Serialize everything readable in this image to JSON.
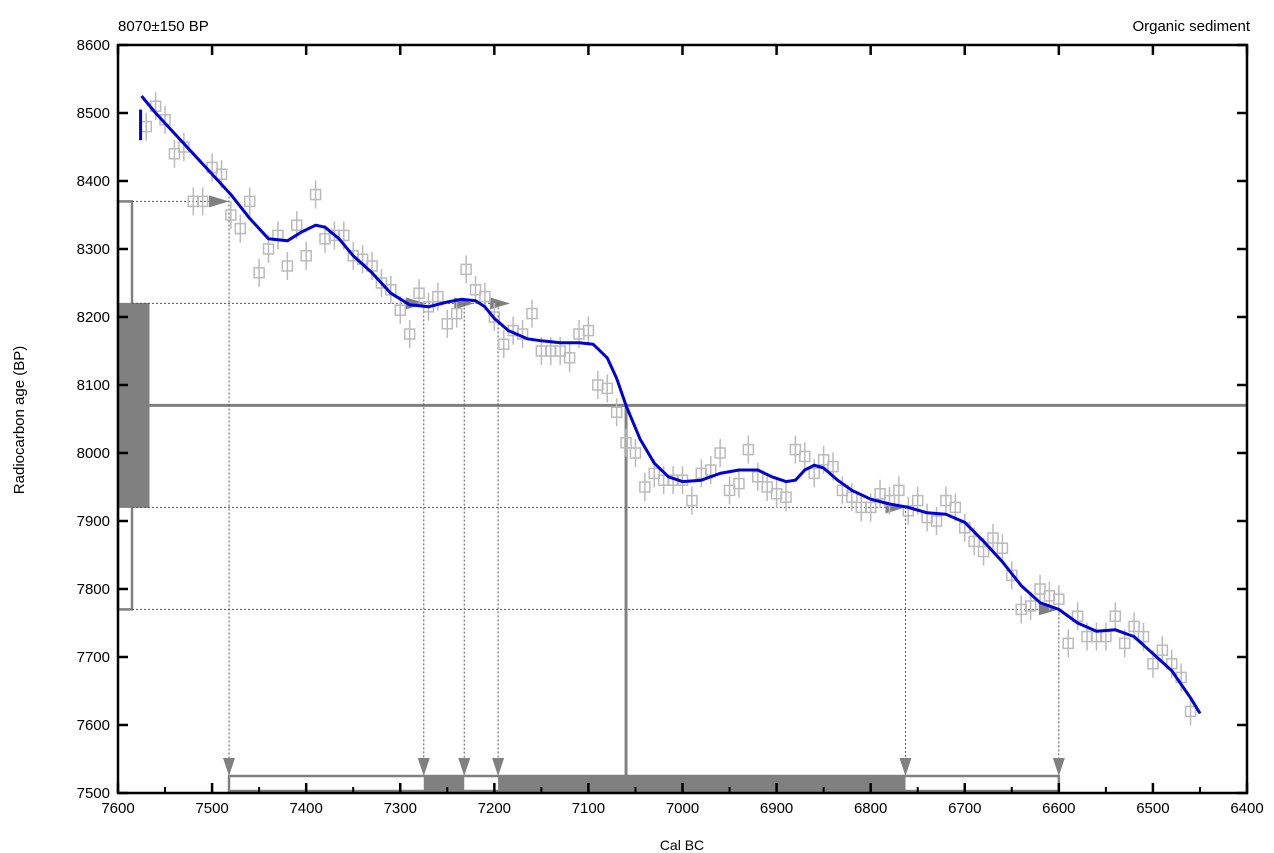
{
  "header": {
    "left_label": "8070±150 BP",
    "right_label": "Organic sediment"
  },
  "chart_data": {
    "type": "line",
    "title": "",
    "xlabel": "Cal BC",
    "ylabel": "Radiocarbon age (BP)",
    "xlim": [
      7600,
      6400
    ],
    "ylim": [
      7500,
      8600
    ],
    "x_ticks": [
      "7600",
      "7500",
      "7400",
      "7300",
      "7200",
      "7100",
      "7000",
      "6900",
      "6800",
      "6700",
      "6600",
      "6500",
      "6400"
    ],
    "y_ticks": [
      "7500",
      "7600",
      "7700",
      "7800",
      "7900",
      "8000",
      "8100",
      "8200",
      "8300",
      "8400",
      "8500",
      "8600"
    ],
    "grid": false,
    "sample": {
      "age_bp": 8070,
      "sigma": 150,
      "one_sigma_range": [
        7920,
        8220
      ],
      "two_sigma_range": [
        7770,
        8370
      ],
      "median_cal_bc": 7060
    },
    "calibration_curve": {
      "color": "#0000dd",
      "x": [
        7575,
        7560,
        7540,
        7520,
        7500,
        7480,
        7460,
        7440,
        7420,
        7405,
        7390,
        7380,
        7365,
        7350,
        7330,
        7310,
        7290,
        7270,
        7250,
        7235,
        7220,
        7210,
        7200,
        7185,
        7165,
        7150,
        7130,
        7110,
        7095,
        7080,
        7070,
        7060,
        7045,
        7030,
        7015,
        7000,
        6980,
        6960,
        6940,
        6920,
        6905,
        6890,
        6880,
        6870,
        6860,
        6850,
        6835,
        6820,
        6800,
        6780,
        6760,
        6740,
        6720,
        6700,
        6680,
        6660,
        6640,
        6620,
        6600,
        6580,
        6560,
        6540,
        6520,
        6500,
        6480,
        6460,
        6450
      ],
      "y": [
        8525,
        8500,
        8470,
        8440,
        8410,
        8380,
        8345,
        8315,
        8312,
        8325,
        8335,
        8332,
        8315,
        8290,
        8265,
        8235,
        8218,
        8215,
        8222,
        8226,
        8224,
        8215,
        8198,
        8180,
        8168,
        8165,
        8162,
        8162,
        8160,
        8140,
        8110,
        8070,
        8020,
        7985,
        7965,
        7958,
        7960,
        7970,
        7975,
        7975,
        7965,
        7958,
        7960,
        7975,
        7982,
        7978,
        7960,
        7945,
        7932,
        7925,
        7920,
        7912,
        7910,
        7898,
        7870,
        7840,
        7805,
        7780,
        7770,
        7750,
        7738,
        7740,
        7730,
        7705,
        7680,
        7640,
        7617
      ]
    },
    "decadal_data_points": {
      "color": "#bbbbbb",
      "x": [
        7570,
        7560,
        7550,
        7540,
        7530,
        7520,
        7510,
        7500,
        7490,
        7480,
        7470,
        7460,
        7450,
        7440,
        7430,
        7420,
        7410,
        7400,
        7390,
        7380,
        7370,
        7360,
        7350,
        7340,
        7330,
        7320,
        7310,
        7300,
        7290,
        7280,
        7270,
        7260,
        7250,
        7240,
        7230,
        7220,
        7210,
        7200,
        7190,
        7180,
        7170,
        7160,
        7150,
        7140,
        7130,
        7120,
        7110,
        7100,
        7090,
        7080,
        7070,
        7060,
        7050,
        7040,
        7030,
        7020,
        7010,
        7000,
        6990,
        6980,
        6970,
        6960,
        6950,
        6940,
        6930,
        6920,
        6910,
        6900,
        6890,
        6880,
        6870,
        6860,
        6850,
        6840,
        6830,
        6820,
        6810,
        6800,
        6790,
        6780,
        6770,
        6760,
        6750,
        6740,
        6730,
        6720,
        6710,
        6700,
        6690,
        6680,
        6670,
        6660,
        6650,
        6640,
        6630,
        6620,
        6610,
        6600,
        6590,
        6580,
        6570,
        6560,
        6550,
        6540,
        6530,
        6520,
        6510,
        6500,
        6490,
        6480,
        6470,
        6460
      ],
      "y": [
        8480,
        8510,
        8490,
        8440,
        8450,
        8370,
        8370,
        8420,
        8410,
        8350,
        8330,
        8370,
        8265,
        8300,
        8320,
        8275,
        8335,
        8290,
        8380,
        8315,
        8320,
        8320,
        8290,
        8285,
        8275,
        8250,
        8240,
        8210,
        8175,
        8235,
        8215,
        8230,
        8190,
        8205,
        8270,
        8240,
        8230,
        8200,
        8160,
        8180,
        8175,
        8205,
        8150,
        8150,
        8150,
        8140,
        8175,
        8180,
        8100,
        8095,
        8060,
        8015,
        8000,
        7950,
        7970,
        7960,
        7960,
        7960,
        7930,
        7970,
        7975,
        8000,
        7945,
        7955,
        8005,
        7965,
        7950,
        7940,
        7935,
        8005,
        7995,
        7970,
        7990,
        7980,
        7945,
        7935,
        7920,
        7920,
        7940,
        7930,
        7945,
        7915,
        7930,
        7905,
        7900,
        7930,
        7920,
        7890,
        7870,
        7855,
        7875,
        7860,
        7820,
        7770,
        7775,
        7800,
        7790,
        7785,
        7720,
        7760,
        7730,
        7730,
        7730,
        7760,
        7720,
        7745,
        7730,
        7690,
        7710,
        7690,
        7670,
        7620
      ]
    },
    "range_markers_x": [
      7482,
      7275,
      7232,
      7196,
      6763,
      6600
    ]
  }
}
